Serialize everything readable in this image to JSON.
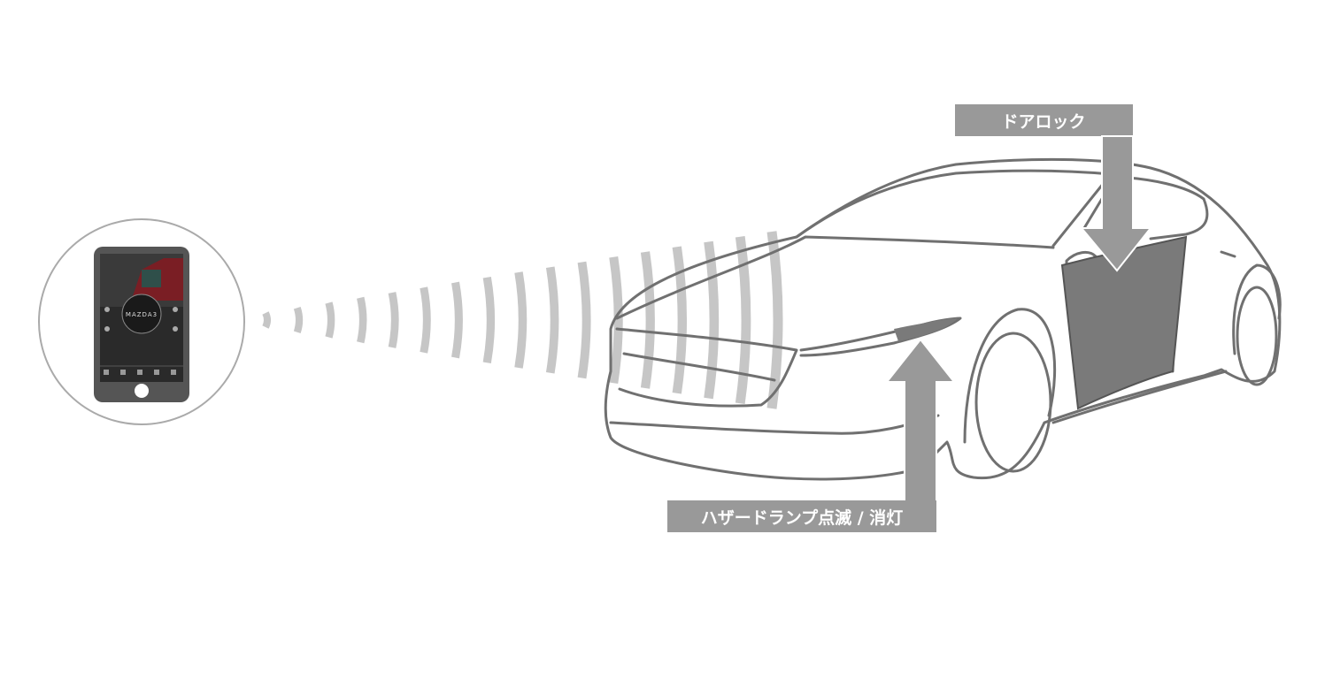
{
  "labels": {
    "door_lock": "ドアロック",
    "hazard": "ハザードランプ点滅 / 消灯"
  },
  "phone": {
    "brand": "MAZDA3"
  },
  "colors": {
    "label_bg": "#999999",
    "label_text": "#ffffff",
    "wave": "#c6c6c6",
    "car_line": "#707070",
    "door_fill": "#7a7a7a",
    "circle_stroke": "#aaaaaa"
  },
  "icons": [
    "smartphone-icon",
    "signal-waves-icon",
    "arrow-down-icon",
    "arrow-up-icon"
  ]
}
